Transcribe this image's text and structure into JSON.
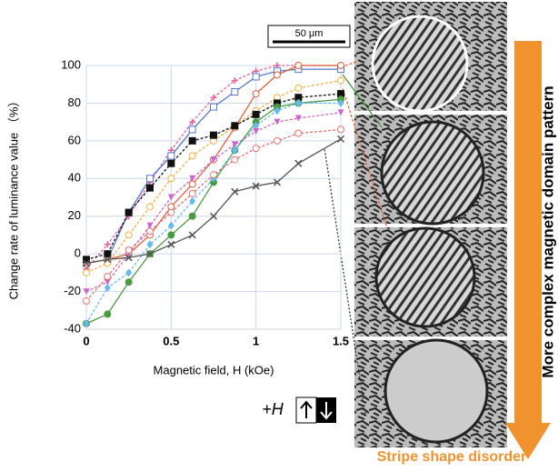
{
  "chart_data": {
    "type": "line",
    "ylabel": "Change rate of luminance value （%）",
    "xlabel": "Magnetic field, H (kOe)",
    "x": [
      0,
      0.125,
      0.25,
      0.375,
      0.5,
      0.625,
      0.75,
      0.875,
      1,
      1.125,
      1.25,
      1.5
    ],
    "xlim": [
      0,
      1.5
    ],
    "xticks": [
      0,
      0.5,
      1,
      1.5
    ],
    "ylim": [
      -40,
      100
    ],
    "yticks": [
      -40,
      -20,
      0,
      20,
      40,
      60,
      80,
      100
    ],
    "grid": true,
    "series": [
      {
        "color": "#e8609a",
        "dashed": true,
        "marker": "plus",
        "values": [
          -8,
          5,
          20,
          38,
          55,
          70,
          83,
          92,
          97,
          100,
          100,
          100
        ]
      },
      {
        "color": "#5577cc",
        "dashed": false,
        "marker": "square-open",
        "values": [
          -5,
          -3,
          22,
          40,
          52,
          66,
          78,
          86,
          94,
          97,
          98,
          98
        ]
      },
      {
        "color": "#e0603a",
        "dashed": false,
        "marker": "circle-open",
        "values": [
          -5,
          -3,
          0,
          10,
          25,
          37,
          50,
          67,
          85,
          95,
          100,
          100
        ]
      },
      {
        "color": "#f5b040",
        "dashed": true,
        "marker": "circle-open",
        "values": [
          -10,
          -5,
          10,
          25,
          40,
          52,
          60,
          68,
          76,
          83,
          88,
          92
        ]
      },
      {
        "color": "#111111",
        "dashed": true,
        "marker": "square",
        "values": [
          -3,
          0,
          22,
          35,
          48,
          60,
          63,
          68,
          74,
          80,
          83,
          85
        ]
      },
      {
        "color": "#4a9a40",
        "dashed": false,
        "marker": "circle",
        "values": [
          -37,
          -32,
          -15,
          0,
          10,
          20,
          38,
          55,
          70,
          78,
          80,
          82
        ]
      },
      {
        "color": "#66bbee",
        "dashed": true,
        "marker": "diamond",
        "values": [
          -37,
          -18,
          -10,
          5,
          15,
          28,
          40,
          55,
          68,
          76,
          80,
          80
        ]
      },
      {
        "color": "#cc66cc",
        "dashed": true,
        "marker": "triangle",
        "values": [
          -20,
          -15,
          0,
          15,
          30,
          40,
          50,
          58,
          65,
          70,
          72,
          75
        ]
      },
      {
        "color": "#e87070",
        "dashed": true,
        "marker": "circle-open",
        "values": [
          -25,
          -12,
          2,
          12,
          22,
          32,
          42,
          50,
          56,
          60,
          64,
          66
        ]
      },
      {
        "color": "#555555",
        "dashed": false,
        "marker": "cross",
        "values": [
          -5,
          -3,
          -2,
          0,
          5,
          10,
          20,
          33,
          36,
          38,
          48,
          61
        ]
      }
    ]
  },
  "scale_bar": "50 μm",
  "field_label": "+H",
  "side_label": "More complex magnetic domain pattern",
  "bottom_label": "Stripe shape disorder"
}
